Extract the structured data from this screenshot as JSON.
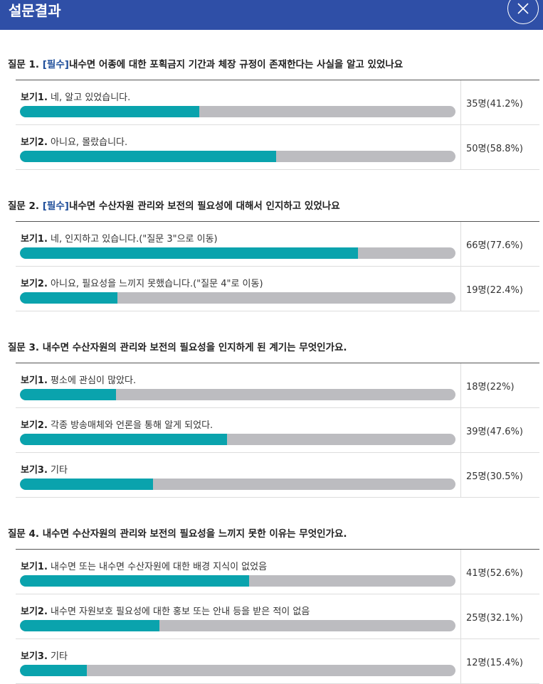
{
  "header": {
    "title": "설문결과"
  },
  "colors": {
    "header_bg": "#2f4fa7",
    "bar_fill": "#0aa3ad",
    "bar_track": "#bcbcc0",
    "required": "#1f4e9a"
  },
  "questions": [
    {
      "prefix": "질문 1.",
      "required": "[필수]",
      "text": "내수면 어종에 대한 포획금지 기간과 체장 규정이 존재한다는 사실을 알고 있었나요",
      "options": [
        {
          "num": "보기1.",
          "text": "네, 알고 있었습니다.",
          "result": "35명(41.2%)",
          "percent": 41.2
        },
        {
          "num": "보기2.",
          "text": "아니요, 몰랐습니다.",
          "result": "50명(58.8%)",
          "percent": 58.8
        }
      ]
    },
    {
      "prefix": "질문 2.",
      "required": "[필수]",
      "text": "내수면 수산자원 관리와 보전의 필요성에 대해서 인지하고 있었나요",
      "options": [
        {
          "num": "보기1.",
          "text": "네, 인지하고 있습니다.(\"질문 3\"으로 이동)",
          "result": "66명(77.6%)",
          "percent": 77.6
        },
        {
          "num": "보기2.",
          "text": "아니요, 필요성을 느끼지 못했습니다.(\"질문 4\"로 이동)",
          "result": "19명(22.4%)",
          "percent": 22.4
        }
      ]
    },
    {
      "prefix": "질문 3.",
      "required": "",
      "text": "내수면 수산자원의 관리와 보전의 필요성을 인지하게 된 계기는 무엇인가요.",
      "options": [
        {
          "num": "보기1.",
          "text": "평소에 관심이 많았다.",
          "result": "18명(22%)",
          "percent": 22
        },
        {
          "num": "보기2.",
          "text": "각종 방송매체와 언론을 통해 알게 되었다.",
          "result": "39명(47.6%)",
          "percent": 47.6
        },
        {
          "num": "보기3.",
          "text": "기타",
          "result": "25명(30.5%)",
          "percent": 30.5
        }
      ]
    },
    {
      "prefix": "질문 4.",
      "required": "",
      "text": "내수면 수산자원의 관리와 보전의 필요성을 느끼지 못한 이유는 무엇인가요.",
      "options": [
        {
          "num": "보기1.",
          "text": "내수면 또는 내수면 수산자원에 대한 배경 지식이 없었음",
          "result": "41명(52.6%)",
          "percent": 52.6
        },
        {
          "num": "보기2.",
          "text": "내수면 자원보호 필요성에 대한 홍보 또는 안내 등을 받은 적이 없음",
          "result": "25명(32.1%)",
          "percent": 32.1
        },
        {
          "num": "보기3.",
          "text": "기타",
          "result": "12명(15.4%)",
          "percent": 15.4
        }
      ]
    }
  ]
}
